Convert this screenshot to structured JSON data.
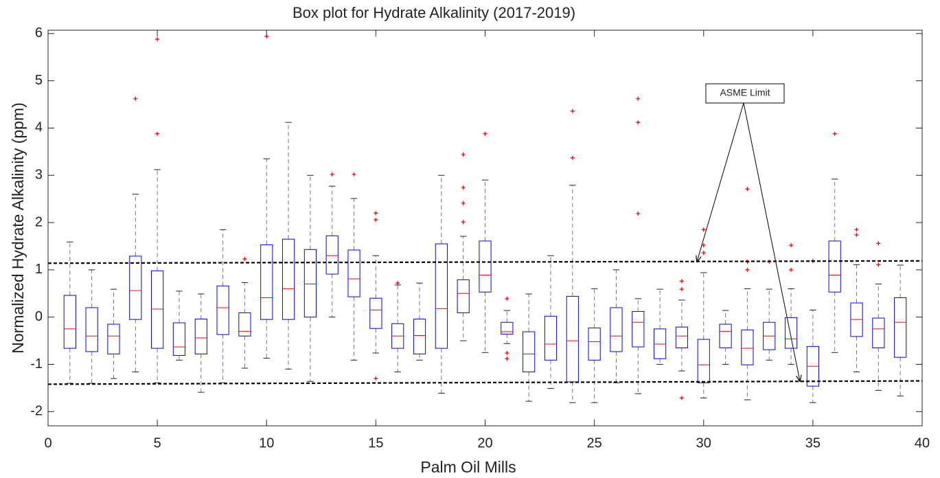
{
  "chart_data": {
    "type": "box",
    "title": "Box plot for Hydrate Alkalinity (2017-2019)",
    "x_label": "Palm Oil Mills",
    "y_label": "Normalized Hydrate Alkalinity (ppm)",
    "xlim": [
      0,
      40
    ],
    "ylim": [
      -2.3,
      6.07
    ],
    "xticks": [
      0,
      5,
      10,
      15,
      20,
      25,
      30,
      35,
      40
    ],
    "yticks": [
      -2,
      -1,
      0,
      1,
      2,
      3,
      4,
      5,
      6
    ],
    "grid": false,
    "box_color": "#0000ff",
    "median_color": "#ff0000",
    "whisker_color": "#777777",
    "flier_color": "#ff0000",
    "x": [
      1,
      2,
      3,
      4,
      5,
      6,
      7,
      8,
      9,
      10,
      11,
      12,
      13,
      14,
      15,
      16,
      17,
      18,
      19,
      20,
      21,
      22,
      23,
      24,
      25,
      26,
      27,
      28,
      29,
      30,
      31,
      32,
      33,
      34,
      35,
      36,
      37,
      38,
      39
    ],
    "whislo": [
      -1.4,
      -1.4,
      -1.3,
      -1.16,
      -1.39,
      -0.91,
      -1.59,
      -1.39,
      -1.08,
      -0.87,
      -1.1,
      -1.36,
      0.0,
      -0.91,
      -0.76,
      -1.16,
      -0.91,
      -1.61,
      -0.5,
      -0.75,
      -0.56,
      -1.78,
      -1.51,
      -1.81,
      -1.81,
      -1.39,
      -1.62,
      -1.0,
      -1.14,
      -1.71,
      -1.0,
      -1.75,
      -0.91,
      -1.0,
      -1.81,
      -0.75,
      -1.16,
      -1.55,
      -1.67
    ],
    "q1": [
      -0.66,
      -0.73,
      -0.78,
      -0.05,
      -0.66,
      -0.81,
      -0.78,
      -0.37,
      -0.4,
      -0.05,
      -0.05,
      0.0,
      0.91,
      0.43,
      -0.24,
      -0.66,
      -0.78,
      -0.66,
      0.09,
      0.53,
      -0.36,
      -1.16,
      -0.91,
      -1.37,
      -0.91,
      -0.73,
      -0.63,
      -0.88,
      -0.65,
      -1.39,
      -0.65,
      -1.01,
      -0.69,
      -0.66,
      -1.46,
      0.53,
      -0.41,
      -0.65,
      -0.85
    ],
    "median": [
      -0.25,
      -0.4,
      -0.4,
      0.56,
      0.17,
      -0.63,
      -0.44,
      0.2,
      -0.3,
      0.41,
      0.6,
      0.7,
      1.3,
      0.81,
      0.15,
      -0.4,
      -0.39,
      0.18,
      0.5,
      0.89,
      -0.31,
      -0.78,
      -0.57,
      -0.5,
      -0.52,
      -0.4,
      -0.11,
      -0.57,
      -0.4,
      -1.01,
      -0.3,
      -0.66,
      -0.4,
      -0.46,
      -1.04,
      0.89,
      -0.05,
      -0.25,
      -0.11
    ],
    "q3": [
      0.46,
      0.2,
      -0.15,
      1.29,
      0.98,
      -0.12,
      -0.04,
      0.66,
      0.09,
      1.53,
      1.65,
      1.43,
      1.72,
      1.42,
      0.4,
      -0.14,
      -0.04,
      1.55,
      0.79,
      1.61,
      -0.11,
      -0.31,
      0.02,
      0.44,
      -0.23,
      0.2,
      0.12,
      -0.25,
      -0.21,
      -0.47,
      -0.15,
      -0.27,
      -0.11,
      -0.01,
      -0.62,
      1.61,
      0.3,
      -0.02,
      0.41
    ],
    "whishi": [
      1.59,
      1.0,
      0.59,
      2.6,
      3.12,
      0.55,
      0.49,
      1.85,
      0.73,
      3.35,
      4.12,
      3.0,
      2.77,
      2.51,
      1.3,
      0.68,
      0.72,
      3.0,
      1.71,
      2.9,
      0.14,
      0.49,
      1.3,
      2.79,
      0.6,
      1.0,
      0.39,
      0.59,
      0.36,
      0.94,
      0.14,
      0.6,
      0.59,
      0.6,
      0.15,
      2.92,
      1.11,
      0.7,
      1.1
    ],
    "fliers": [
      [],
      [],
      [],
      [
        4.62
      ],
      [
        5.88,
        3.88
      ],
      [],
      [],
      [],
      [
        1.23
      ],
      [
        5.94
      ],
      [],
      [],
      [
        3.02
      ],
      [
        3.02
      ],
      [
        2.2,
        2.06,
        -1.3
      ],
      [
        0.72
      ],
      [],
      [],
      [
        3.44,
        2.74,
        2.41,
        2.01
      ],
      [
        3.88
      ],
      [
        0.39,
        -0.76,
        -0.88
      ],
      [],
      [],
      [
        4.36,
        3.37
      ],
      [],
      [],
      [
        4.62,
        4.12,
        2.19
      ],
      [],
      [
        0.76,
        0.59,
        -1.71
      ],
      [
        1.85,
        1.52,
        1.36
      ],
      [],
      [
        2.71,
        1.17,
        1.0
      ],
      [
        1.17
      ],
      [
        1.52,
        1.0
      ],
      [
        1.19
      ],
      [
        3.88
      ],
      [
        1.85,
        1.74
      ],
      [
        1.56,
        1.11
      ],
      []
    ],
    "lines": [
      {
        "x": [
          0,
          40
        ],
        "y": [
          1.14,
          1.19
        ]
      },
      {
        "x": [
          0,
          40
        ],
        "y": [
          -1.42,
          -1.35
        ]
      }
    ],
    "annotation": "ASME Limit"
  }
}
